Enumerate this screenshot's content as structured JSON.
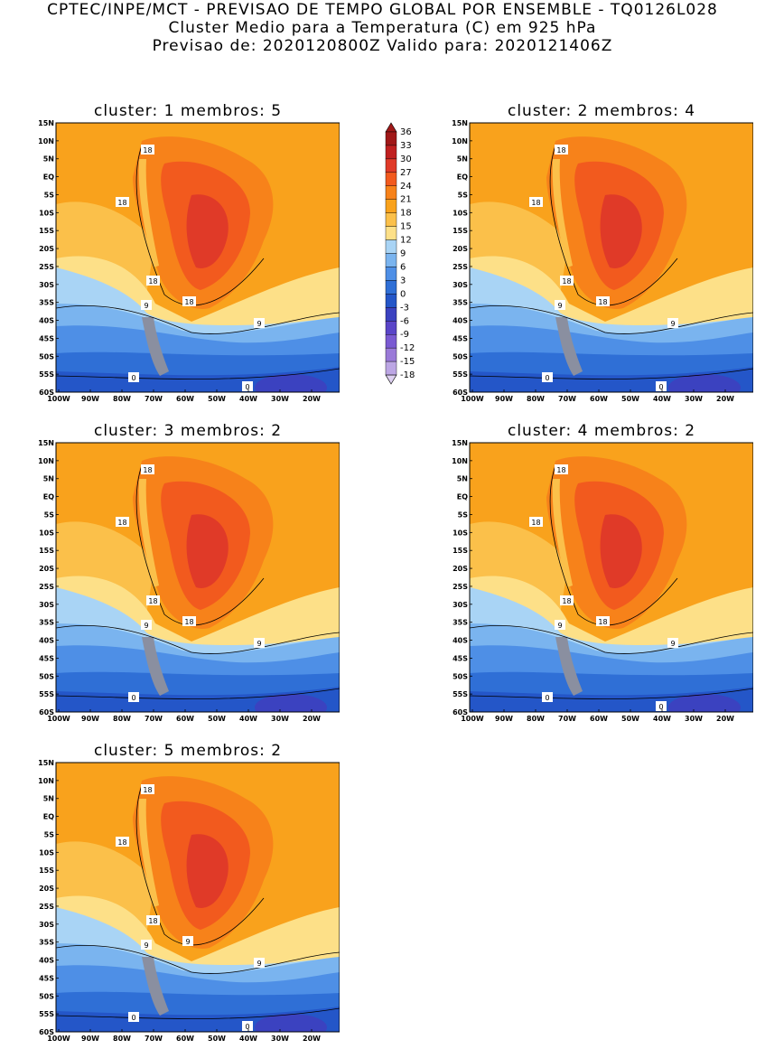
{
  "header": {
    "line1": "CPTEC/INPE/MCT - PREVISAO DE TEMPO GLOBAL POR ENSEMBLE - TQ0126L028",
    "line2": "Cluster Medio para a Temperatura (C) em 925 hPa",
    "line3": "Previsao de: 2020120800Z   Valido para: 2020121406Z"
  },
  "axes": {
    "lat_labels": [
      "15N",
      "10N",
      "5N",
      "EQ",
      "5S",
      "10S",
      "15S",
      "20S",
      "25S",
      "30S",
      "35S",
      "40S",
      "45S",
      "50S",
      "55S",
      "60S"
    ],
    "lon_labels": [
      "100W",
      "90W",
      "80W",
      "70W",
      "60W",
      "50W",
      "40W",
      "30W",
      "20W"
    ]
  },
  "legend": {
    "levels": [
      "36",
      "33",
      "30",
      "27",
      "24",
      "21",
      "18",
      "15",
      "12",
      "9",
      "6",
      "3",
      "0",
      "-3",
      "-6",
      "-9",
      "-12",
      "-15",
      "-18"
    ],
    "colors": [
      "#a01818",
      "#c02020",
      "#e03a28",
      "#f25a1e",
      "#f7821a",
      "#f9a21c",
      "#fbc04a",
      "#fde088",
      "#a9d4f5",
      "#7ab4ef",
      "#4e8fe6",
      "#2f6fd6",
      "#2456c8",
      "#3b42c0",
      "#5a45c8",
      "#7a5ad2",
      "#9a7ad8",
      "#bca6e4",
      "#ddd0f0"
    ]
  },
  "panels": [
    {
      "title": "cluster: 1   membros: 5",
      "contour_labels": [
        "18",
        "18",
        "18",
        "18",
        "9",
        "9",
        "0",
        "0"
      ]
    },
    {
      "title": "cluster: 2   membros: 4",
      "contour_labels": [
        "18",
        "18",
        "18",
        "18",
        "9",
        "9",
        "0",
        "0"
      ]
    },
    {
      "title": "cluster: 3   membros: 2",
      "contour_labels": [
        "18",
        "18",
        "18",
        "18",
        "9",
        "9",
        "0"
      ]
    },
    {
      "title": "cluster: 4   membros: 2",
      "contour_labels": [
        "18",
        "18",
        "18",
        "18",
        "9",
        "9",
        "0",
        "0"
      ]
    },
    {
      "title": "cluster: 5   membros: 2",
      "contour_labels": [
        "18",
        "18",
        "18",
        "9",
        "9",
        "9",
        "0",
        "0"
      ]
    }
  ]
}
